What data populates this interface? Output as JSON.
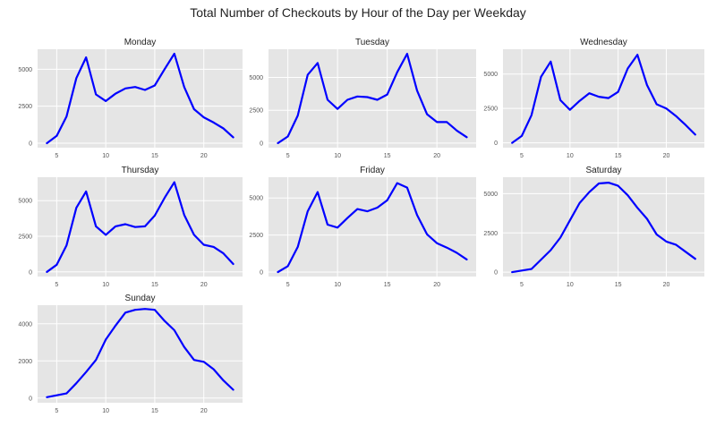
{
  "title": "Total Number of Checkouts by Hour of the Day per Weekday",
  "colors": {
    "line": "#0000ff",
    "panel_background": "#e5e5e5",
    "grid": "#ffffff"
  },
  "chart_data": [
    {
      "type": "line",
      "title": "Monday",
      "grid": true,
      "xlim": [
        3.05,
        23.95
      ],
      "ylim": [
        -300,
        6350
      ],
      "xticks": [
        5,
        10,
        15,
        20
      ],
      "xtick_labels": [
        "5",
        "10",
        "15",
        "20"
      ],
      "yticks": [
        0,
        2500,
        5000
      ],
      "ytick_labels": [
        "0",
        "2500",
        "5000"
      ],
      "x": [
        4,
        5,
        6,
        7,
        8,
        9,
        10,
        11,
        12,
        13,
        14,
        15,
        16,
        17,
        18,
        19,
        20,
        21,
        22,
        23
      ],
      "y": [
        0,
        500,
        1800,
        4400,
        5800,
        3300,
        2850,
        3350,
        3700,
        3800,
        3600,
        3900,
        5000,
        6050,
        3800,
        2300,
        1750,
        1400,
        1000,
        400
      ]
    },
    {
      "type": "line",
      "title": "Tuesday",
      "grid": true,
      "xlim": [
        3.05,
        23.95
      ],
      "ylim": [
        -350,
        7150
      ],
      "xticks": [
        5,
        10,
        15,
        20
      ],
      "xtick_labels": [
        "5",
        "10",
        "15",
        "20"
      ],
      "yticks": [
        0,
        2500,
        5000
      ],
      "ytick_labels": [
        "0",
        "2500",
        "5000"
      ],
      "x": [
        4,
        5,
        6,
        7,
        8,
        9,
        10,
        11,
        12,
        13,
        14,
        15,
        16,
        17,
        18,
        19,
        20,
        21,
        22,
        23
      ],
      "y": [
        0,
        500,
        2100,
        5200,
        6100,
        3300,
        2600,
        3300,
        3550,
        3500,
        3300,
        3700,
        5400,
        6800,
        4000,
        2200,
        1600,
        1600,
        950,
        450
      ]
    },
    {
      "type": "line",
      "title": "Wednesday",
      "grid": true,
      "xlim": [
        3.05,
        23.95
      ],
      "ylim": [
        -350,
        6800
      ],
      "xticks": [
        5,
        10,
        15,
        20
      ],
      "xtick_labels": [
        "5",
        "10",
        "15",
        "20"
      ],
      "yticks": [
        0,
        2500,
        5000
      ],
      "ytick_labels": [
        "0",
        "2500",
        "5000"
      ],
      "x": [
        4,
        5,
        6,
        7,
        8,
        9,
        10,
        11,
        12,
        13,
        14,
        15,
        16,
        17,
        18,
        19,
        20,
        21,
        22,
        23
      ],
      "y": [
        0,
        500,
        2000,
        4800,
        5900,
        3100,
        2400,
        3050,
        3600,
        3350,
        3250,
        3700,
        5400,
        6400,
        4200,
        2800,
        2500,
        1950,
        1300,
        600
      ]
    },
    {
      "type": "line",
      "title": "Thursday",
      "grid": true,
      "xlim": [
        3.05,
        23.95
      ],
      "ylim": [
        -330,
        6650
      ],
      "xticks": [
        5,
        10,
        15,
        20
      ],
      "xtick_labels": [
        "5",
        "10",
        "15",
        "20"
      ],
      "yticks": [
        0,
        2500,
        5000
      ],
      "ytick_labels": [
        "0",
        "2500",
        "5000"
      ],
      "x": [
        4,
        5,
        6,
        7,
        8,
        9,
        10,
        11,
        12,
        13,
        14,
        15,
        16,
        17,
        18,
        19,
        20,
        21,
        22,
        23
      ],
      "y": [
        0,
        500,
        1850,
        4500,
        5650,
        3200,
        2600,
        3200,
        3350,
        3150,
        3200,
        3950,
        5200,
        6300,
        4000,
        2600,
        1900,
        1750,
        1300,
        550
      ]
    },
    {
      "type": "line",
      "title": "Friday",
      "grid": true,
      "xlim": [
        3.05,
        23.95
      ],
      "ylim": [
        -300,
        6400
      ],
      "xticks": [
        5,
        10,
        15,
        20
      ],
      "xtick_labels": [
        "5",
        "10",
        "15",
        "20"
      ],
      "yticks": [
        0,
        2500,
        5000
      ],
      "ytick_labels": [
        "0",
        "2500",
        "5000"
      ],
      "x": [
        4,
        5,
        6,
        7,
        8,
        9,
        10,
        11,
        12,
        13,
        14,
        15,
        16,
        17,
        18,
        19,
        20,
        21,
        22,
        23
      ],
      "y": [
        0,
        400,
        1700,
        4100,
        5400,
        3200,
        3000,
        3650,
        4250,
        4100,
        4350,
        4850,
        6000,
        5700,
        3850,
        2550,
        1950,
        1650,
        1300,
        850
      ]
    },
    {
      "type": "line",
      "title": "Saturday",
      "grid": true,
      "xlim": [
        3.05,
        23.95
      ],
      "ylim": [
        -280,
        6050
      ],
      "xticks": [
        5,
        10,
        15,
        20
      ],
      "xtick_labels": [
        "5",
        "10",
        "15",
        "20"
      ],
      "yticks": [
        0,
        2500,
        5000
      ],
      "ytick_labels": [
        "0",
        "2500",
        "5000"
      ],
      "x": [
        4,
        5,
        6,
        7,
        8,
        9,
        10,
        11,
        12,
        13,
        14,
        15,
        16,
        17,
        18,
        19,
        20,
        21,
        22,
        23
      ],
      "y": [
        0,
        100,
        200,
        800,
        1400,
        2200,
        3300,
        4400,
        5100,
        5650,
        5700,
        5500,
        4900,
        4100,
        3400,
        2400,
        1950,
        1750,
        1300,
        850
      ]
    },
    {
      "type": "line",
      "title": "Sunday",
      "grid": true,
      "xlim": [
        3.05,
        23.95
      ],
      "ylim": [
        -250,
        5000
      ],
      "xticks": [
        5,
        10,
        15,
        20
      ],
      "xtick_labels": [
        "5",
        "10",
        "15",
        "20"
      ],
      "yticks": [
        0,
        2000,
        4000
      ],
      "ytick_labels": [
        "0",
        "2000",
        "4000"
      ],
      "x": [
        4,
        5,
        6,
        7,
        8,
        9,
        10,
        11,
        12,
        13,
        14,
        15,
        16,
        17,
        18,
        19,
        20,
        21,
        22,
        23
      ],
      "y": [
        50,
        150,
        250,
        800,
        1400,
        2050,
        3150,
        3900,
        4600,
        4750,
        4800,
        4750,
        4150,
        3650,
        2750,
        2050,
        1950,
        1550,
        950,
        450
      ]
    }
  ]
}
